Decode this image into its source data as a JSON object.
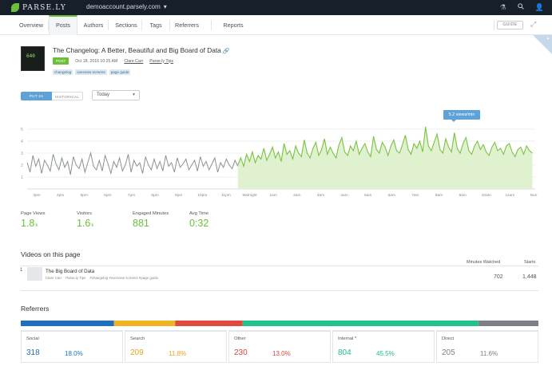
{
  "app": {
    "logo_text": "PARSE.LY",
    "site": "demoaccount.parsely.com"
  },
  "nav": {
    "items": [
      {
        "label": "Overview",
        "active": false
      },
      {
        "label": "Posts",
        "active": true
      },
      {
        "label": "Authors",
        "active": false
      },
      {
        "label": "Sections",
        "active": false
      },
      {
        "label": "Tags",
        "active": false
      },
      {
        "label": "Referrers",
        "active": false
      },
      {
        "label": "Reports",
        "active": false
      }
    ],
    "guide_label": "GUIDE"
  },
  "post": {
    "thumb_text": "640",
    "title": "The Changelog: A Better, Beautiful and Big Board of Data",
    "badge": "POST",
    "date": "Oct 18, 2016 10:25 AM",
    "author": "Clare Carr",
    "section": "Parse.ly Tips",
    "tags": [
      "changelog",
      "overview screens",
      "page guide"
    ]
  },
  "controls": {
    "mode_on": "PUT 24",
    "mode_off": "HISTORICAL",
    "range": "Today"
  },
  "chart_data": {
    "type": "line",
    "x_labels": [
      "3pm",
      "4pm",
      "5pm",
      "6pm",
      "7pm",
      "8pm",
      "9pm",
      "10pm",
      "11pm",
      "Midnight",
      "1am",
      "2am",
      "3am",
      "4am",
      "5am",
      "6am",
      "7am",
      "8am",
      "9am",
      "10am",
      "11am",
      "Nun"
    ],
    "y_ticks": [
      1,
      2,
      3,
      4,
      5
    ],
    "ylim": [
      0,
      6
    ],
    "grid": true,
    "tooltip": "5.2 views/min",
    "series": [
      {
        "color": "#8c9196",
        "values": [
          2.2,
          1.4,
          2.8,
          1.9,
          2.5,
          1.3,
          2.4,
          2.0,
          1.5,
          2.9,
          2.1,
          1.6,
          2.6,
          1.8,
          2.3,
          1.2,
          2.7,
          2.0,
          1.7,
          2.5,
          1.4,
          2.2,
          3.0,
          1.9,
          1.6,
          2.4,
          1.5,
          2.8,
          2.1,
          1.3,
          2.3,
          1.8,
          2.6,
          1.5,
          2.0,
          2.9,
          1.4,
          2.4,
          1.9,
          2.2,
          1.3,
          2.7,
          2.0,
          1.6,
          2.5,
          1.7,
          2.3,
          1.5,
          2.8,
          1.9,
          2.2,
          1.4,
          2.6,
          1.8,
          2.1,
          2.5,
          1.6,
          2.0,
          2.4,
          1.5,
          2.7,
          1.9,
          2.3,
          1.6,
          2.1,
          2.6,
          1.4,
          2.2,
          1.8,
          2.5,
          2.0,
          1.7,
          2.4,
          1.9
        ]
      },
      {
        "color": "#7cc242",
        "fill": "#dff1cf",
        "values": [
          2.0,
          2.6,
          1.9,
          2.9,
          2.3,
          3.1,
          2.2,
          2.8,
          2.5,
          3.4,
          2.4,
          2.9,
          3.5,
          2.6,
          3.1,
          2.3,
          3.8,
          2.9,
          3.2,
          2.5,
          3.6,
          3.0,
          2.7,
          4.1,
          3.0,
          2.6,
          3.4,
          3.9,
          2.8,
          3.3,
          4.2,
          2.9,
          3.5,
          3.0,
          2.6,
          3.7,
          4.3,
          3.1,
          2.8,
          3.6,
          3.2,
          4.0,
          2.9,
          3.4,
          3.8,
          3.1,
          2.7,
          4.4,
          3.3,
          3.0,
          3.9,
          3.5,
          2.8,
          3.6,
          4.1,
          3.2,
          3.0,
          3.7,
          4.5,
          3.3,
          2.9,
          3.8,
          3.4,
          4.0,
          3.1,
          5.2,
          3.6,
          3.2,
          3.9,
          4.6,
          3.3,
          3.0,
          4.2,
          3.5,
          3.1,
          4.7,
          3.4,
          3.0,
          3.8,
          4.3,
          3.2,
          2.9,
          3.6,
          4.0,
          3.3,
          3.7,
          3.1,
          2.8,
          3.5,
          3.9,
          3.2,
          3.4,
          2.9,
          3.6,
          3.8,
          3.1,
          2.7,
          3.3,
          3.5,
          2.9,
          3.6,
          3.2,
          3.0
        ]
      }
    ]
  },
  "metrics": [
    {
      "label": "Page Views",
      "value": "1.8",
      "unit": "k"
    },
    {
      "label": "Visitors",
      "value": "1.6",
      "unit": "k"
    },
    {
      "label": "Engaged Minutes",
      "value": "881",
      "unit": ""
    },
    {
      "label": "Avg Time",
      "value": "0:32",
      "unit": ""
    }
  ],
  "videos": {
    "heading": "Videos on this page",
    "col_watched": "Minutes Watched",
    "col_starts": "Starts",
    "rows": [
      {
        "index": "1",
        "title": "The Big Board of Data",
        "author": "Clare Carr",
        "section": "Parse.ly Tips",
        "tags": "#changelog #overview screens #page guide",
        "watched": "702",
        "starts": "1,448"
      }
    ]
  },
  "referrers": {
    "heading": "Referrers",
    "bar": [
      {
        "color": "#1f6fbf",
        "share": 0.18
      },
      {
        "color": "#f0b323",
        "share": 0.118
      },
      {
        "color": "#e0493e",
        "share": 0.13
      },
      {
        "color": "#21c38a",
        "share": 0.455
      },
      {
        "color": "#7b8189",
        "share": 0.116
      }
    ],
    "cards": [
      {
        "name": "Social",
        "count": "318",
        "pct": "18.0%",
        "color": "#1f6fbf"
      },
      {
        "name": "Search",
        "count": "209",
        "pct": "11.8%",
        "color": "#e6a51c"
      },
      {
        "name": "Other",
        "count": "230",
        "pct": "13.0%",
        "color": "#d9453a"
      },
      {
        "name": "Internal *",
        "count": "804",
        "pct": "45.5%",
        "color": "#1fba84"
      },
      {
        "name": "Direct",
        "count": "205",
        "pct": "11.6%",
        "color": "#7b8189"
      }
    ]
  }
}
